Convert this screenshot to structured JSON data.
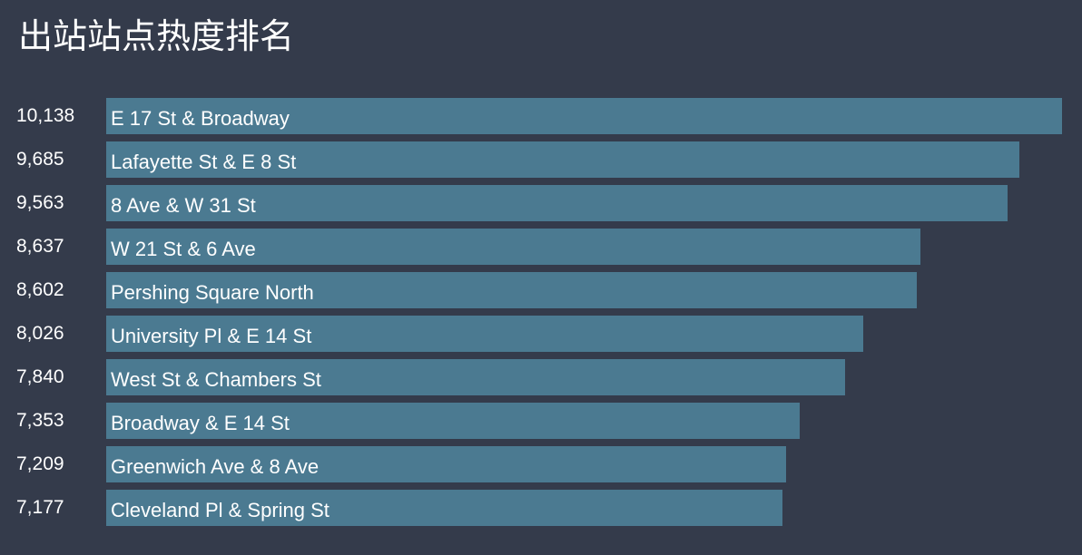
{
  "title": "出站站点热度排名",
  "colors": {
    "background": "#343b4b",
    "bar": "#4b7a91",
    "text": "#ffffff"
  },
  "chart_data": {
    "type": "bar",
    "orientation": "horizontal",
    "title": "出站站点热度排名",
    "xlabel": "",
    "ylabel": "",
    "grid": false,
    "legend": "none",
    "xlim": [
      0,
      10138
    ],
    "categories": [
      "E 17 St & Broadway",
      "Lafayette St & E 8 St",
      "8 Ave & W 31 St",
      "W 21 St & 6 Ave",
      "Pershing Square North",
      "University Pl & E 14 St",
      "West St & Chambers St",
      "Broadway & E 14 St",
      "Greenwich Ave & 8 Ave",
      "Cleveland Pl & Spring St"
    ],
    "values": [
      10138,
      9685,
      9563,
      8637,
      8602,
      8026,
      7840,
      7353,
      7209,
      7177
    ],
    "value_labels": [
      "10,138",
      "9,685",
      "9,563",
      "8,637",
      "8,602",
      "8,026",
      "7,840",
      "7,353",
      "7,209",
      "7,177"
    ]
  }
}
